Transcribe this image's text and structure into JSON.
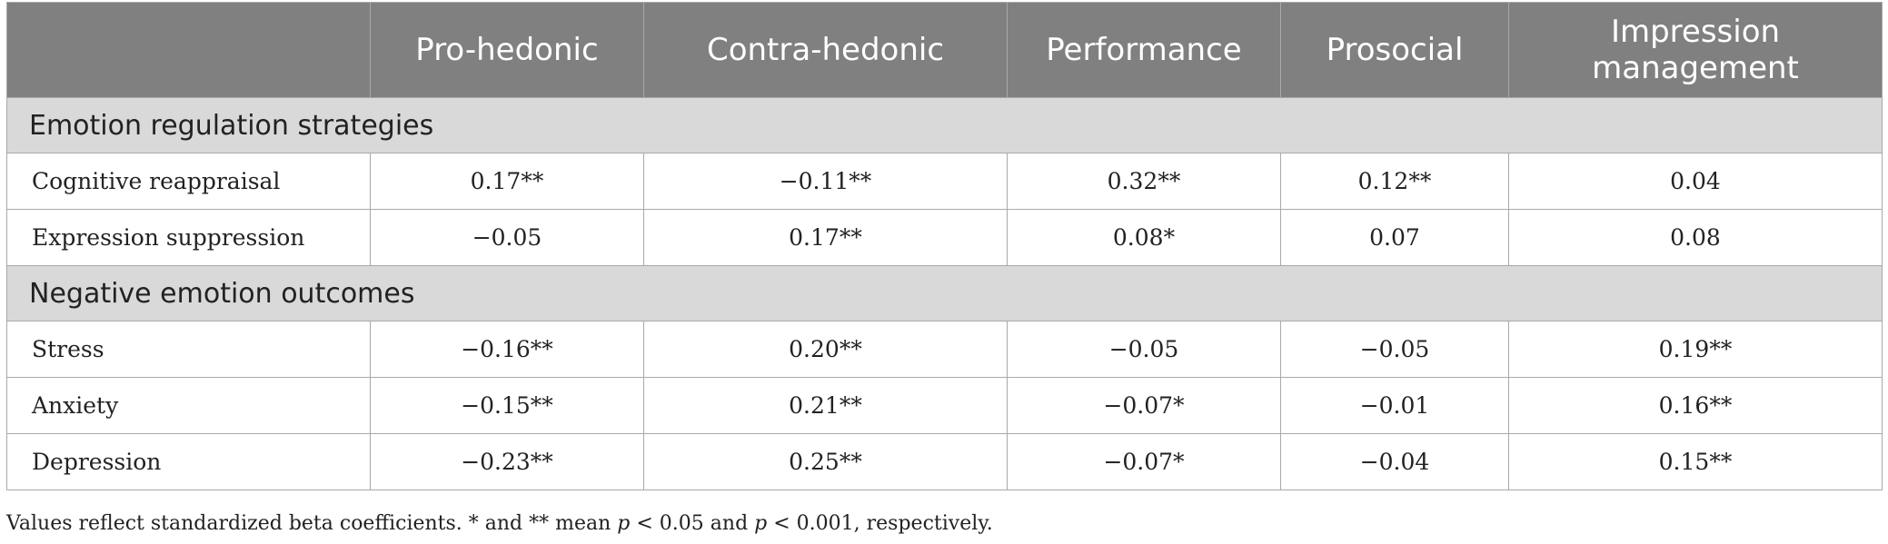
{
  "table": {
    "columns": [
      "",
      "Pro-hedonic",
      "Contra-hedonic",
      "Performance",
      "Prosocial",
      "Impression management"
    ],
    "sections": [
      {
        "title": "Emotion regulation strategies",
        "rows": [
          {
            "label": "Cognitive reappraisal",
            "values": [
              "0.17**",
              "−0.11**",
              "0.32**",
              "0.12**",
              "0.04"
            ]
          },
          {
            "label": "Expression suppression",
            "values": [
              "−0.05",
              "0.17**",
              "0.08*",
              "0.07",
              "0.08"
            ]
          }
        ]
      },
      {
        "title": "Negative emotion outcomes",
        "rows": [
          {
            "label": "Stress",
            "values": [
              "−0.16**",
              "0.20**",
              "−0.05",
              "−0.05",
              "0.19**"
            ]
          },
          {
            "label": "Anxiety",
            "values": [
              "−0.15**",
              "0.21**",
              "−0.07*",
              "−0.01",
              "0.16**"
            ]
          },
          {
            "label": "Depression",
            "values": [
              "−0.23**",
              "0.25**",
              "−0.07*",
              "−0.04",
              "0.15**"
            ]
          }
        ]
      }
    ]
  },
  "footnote": {
    "part1": "Values reflect standardized beta coefficients. * and ** mean ",
    "p1": "p",
    "part2": " < 0.05 and ",
    "p2": "p",
    "part3": " < 0.001, respectively."
  }
}
